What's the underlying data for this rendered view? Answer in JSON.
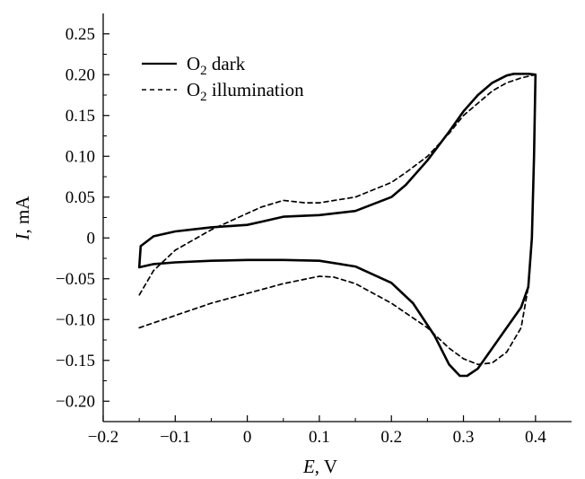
{
  "chart_data": {
    "type": "line",
    "title": "",
    "xlabel": {
      "var": "E",
      "unit": ", V"
    },
    "ylabel": {
      "var": "I",
      "unit": ", mA"
    },
    "xlim": [
      -0.2,
      0.45
    ],
    "ylim": [
      -0.225,
      0.275
    ],
    "xticks": [
      -0.2,
      -0.1,
      0,
      0.1,
      0.2,
      0.3,
      0.4
    ],
    "xtick_labels": [
      "−0.2",
      "−0.1",
      "0",
      "0.1",
      "0.2",
      "0.3",
      "0.4"
    ],
    "yticks": [
      0.25,
      0.2,
      0.15,
      0.1,
      0.05,
      0,
      -0.05,
      -0.1,
      -0.15,
      -0.2
    ],
    "ytick_labels": [
      "0.25",
      "0.20",
      "0.15",
      "0.10",
      "0.05",
      "0",
      "−0.05",
      "−0.10",
      "−0.15",
      "−0.20"
    ],
    "grid": false,
    "legend_position": "top-left",
    "series": [
      {
        "name": {
          "base": "O",
          "sub": "2",
          "rest": " dark"
        },
        "style": "solid",
        "color": "#000000",
        "points": [
          [
            -0.15,
            -0.036
          ],
          [
            -0.13,
            -0.032
          ],
          [
            -0.1,
            -0.03
          ],
          [
            -0.05,
            -0.028
          ],
          [
            0,
            -0.027
          ],
          [
            0.05,
            -0.027
          ],
          [
            0.1,
            -0.028
          ],
          [
            0.15,
            -0.035
          ],
          [
            0.2,
            -0.055
          ],
          [
            0.23,
            -0.08
          ],
          [
            0.26,
            -0.12
          ],
          [
            0.28,
            -0.155
          ],
          [
            0.295,
            -0.169
          ],
          [
            0.305,
            -0.169
          ],
          [
            0.32,
            -0.16
          ],
          [
            0.34,
            -0.135
          ],
          [
            0.36,
            -0.11
          ],
          [
            0.38,
            -0.085
          ],
          [
            0.39,
            -0.06
          ],
          [
            0.395,
            0.0
          ],
          [
            0.398,
            0.1
          ],
          [
            0.4,
            0.2
          ],
          [
            0.39,
            0.201
          ],
          [
            0.37,
            0.201
          ],
          [
            0.36,
            0.199
          ],
          [
            0.34,
            0.19
          ],
          [
            0.32,
            0.175
          ],
          [
            0.3,
            0.155
          ],
          [
            0.28,
            0.13
          ],
          [
            0.25,
            0.095
          ],
          [
            0.22,
            0.065
          ],
          [
            0.2,
            0.05
          ],
          [
            0.15,
            0.033
          ],
          [
            0.1,
            0.028
          ],
          [
            0.05,
            0.026
          ],
          [
            0.02,
            0.02
          ],
          [
            0,
            0.016
          ],
          [
            -0.05,
            0.013
          ],
          [
            -0.1,
            0.008
          ],
          [
            -0.13,
            0.002
          ],
          [
            -0.148,
            -0.01
          ],
          [
            -0.15,
            -0.036
          ]
        ]
      },
      {
        "name": {
          "base": "O",
          "sub": "2",
          "rest": " illumination"
        },
        "style": "dashed",
        "color": "#000000",
        "points": [
          [
            -0.15,
            -0.11
          ],
          [
            -0.1,
            -0.095
          ],
          [
            -0.05,
            -0.08
          ],
          [
            0,
            -0.068
          ],
          [
            0.05,
            -0.056
          ],
          [
            0.1,
            -0.047
          ],
          [
            0.12,
            -0.048
          ],
          [
            0.15,
            -0.056
          ],
          [
            0.2,
            -0.08
          ],
          [
            0.25,
            -0.11
          ],
          [
            0.28,
            -0.135
          ],
          [
            0.3,
            -0.148
          ],
          [
            0.32,
            -0.155
          ],
          [
            0.34,
            -0.153
          ],
          [
            0.36,
            -0.14
          ],
          [
            0.38,
            -0.11
          ],
          [
            0.39,
            -0.06
          ],
          [
            0.395,
            0.0
          ],
          [
            0.398,
            0.1
          ],
          [
            0.4,
            0.2
          ],
          [
            0.38,
            0.196
          ],
          [
            0.36,
            0.19
          ],
          [
            0.34,
            0.18
          ],
          [
            0.32,
            0.165
          ],
          [
            0.3,
            0.15
          ],
          [
            0.28,
            0.128
          ],
          [
            0.25,
            0.1
          ],
          [
            0.22,
            0.08
          ],
          [
            0.2,
            0.068
          ],
          [
            0.15,
            0.05
          ],
          [
            0.1,
            0.043
          ],
          [
            0.08,
            0.043
          ],
          [
            0.05,
            0.046
          ],
          [
            0.02,
            0.038
          ],
          [
            0,
            0.03
          ],
          [
            -0.05,
            0.01
          ],
          [
            -0.1,
            -0.015
          ],
          [
            -0.13,
            -0.04
          ],
          [
            -0.15,
            -0.07
          ]
        ]
      }
    ]
  }
}
